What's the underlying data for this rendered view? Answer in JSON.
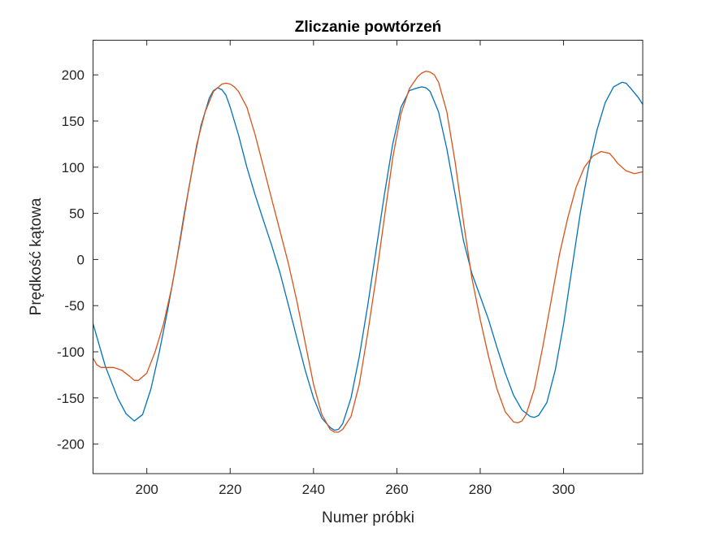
{
  "chart_data": {
    "type": "line",
    "title": "Zliczanie powtórzeń",
    "xlabel": "Numer próbki",
    "ylabel": "Prędkość kątowa",
    "xlim": [
      187,
      319
    ],
    "ylim": [
      -232,
      238
    ],
    "grid": false,
    "legend": "none",
    "x_ticks": [
      200,
      220,
      240,
      260,
      280,
      300
    ],
    "x_tick_labels": [
      "200",
      "220",
      "240",
      "260",
      "280",
      "300"
    ],
    "y_ticks": [
      200,
      150,
      100,
      50,
      0,
      -50,
      -100,
      -150,
      -200
    ],
    "y_tick_labels": [
      "200",
      "150",
      "100",
      "50",
      "0",
      "-50",
      "-100",
      "-150",
      "-200"
    ],
    "series": [
      {
        "color": "#0072BD",
        "x": [
          187,
          190,
          193,
          195,
          197,
          199,
          201,
          203,
          205,
          207,
          209,
          211,
          213,
          215,
          216,
          217,
          218,
          219,
          220,
          222,
          224,
          226,
          228,
          230,
          232,
          234,
          236,
          238,
          240,
          242,
          244,
          245,
          246,
          247,
          249,
          251,
          253,
          255,
          257,
          259,
          261,
          263,
          265,
          266,
          267,
          268,
          270,
          272,
          274,
          276,
          278,
          280,
          282,
          284,
          286,
          288,
          290,
          292,
          293,
          294,
          296,
          298,
          300,
          302,
          304,
          306,
          308,
          310,
          312,
          314,
          315,
          316,
          318,
          319
        ],
        "y": [
          -68,
          -115,
          -150,
          -167,
          -175,
          -168,
          -140,
          -100,
          -55,
          -5,
          50,
          100,
          145,
          175,
          183,
          186,
          184,
          178,
          165,
          135,
          100,
          70,
          42,
          15,
          -15,
          -50,
          -85,
          -120,
          -150,
          -172,
          -182,
          -185,
          -184,
          -178,
          -150,
          -105,
          -50,
          10,
          70,
          125,
          165,
          183,
          186,
          187,
          186,
          182,
          160,
          120,
          70,
          20,
          -15,
          -40,
          -65,
          -95,
          -123,
          -147,
          -163,
          -170,
          -171,
          -169,
          -155,
          -120,
          -70,
          -10,
          50,
          100,
          140,
          170,
          187,
          192,
          191,
          186,
          175,
          168
        ]
      },
      {
        "color": "#D95319",
        "x": [
          187,
          188,
          189,
          190,
          192,
          194,
          196,
          197,
          198,
          200,
          202,
          204,
          206,
          208,
          210,
          212,
          214,
          216,
          218,
          219,
          220,
          221,
          222,
          224,
          226,
          228,
          230,
          232,
          234,
          236,
          238,
          240,
          242,
          244,
          245,
          246,
          247,
          249,
          251,
          253,
          255,
          257,
          259,
          261,
          263,
          265,
          266,
          267,
          268,
          269,
          270,
          272,
          274,
          276,
          278,
          280,
          282,
          284,
          286,
          288,
          289,
          290,
          291,
          293,
          295,
          297,
          299,
          301,
          303,
          305,
          307,
          309,
          311,
          312,
          313,
          315,
          317,
          318,
          319
        ],
        "y": [
          -106,
          -114,
          -117,
          -117,
          -117,
          -120,
          -127,
          -131,
          -131,
          -123,
          -100,
          -70,
          -30,
          20,
          75,
          125,
          160,
          182,
          190,
          191,
          190,
          187,
          182,
          165,
          135,
          100,
          65,
          30,
          -5,
          -45,
          -90,
          -135,
          -168,
          -184,
          -187,
          -187,
          -184,
          -170,
          -135,
          -80,
          -20,
          45,
          110,
          158,
          185,
          198,
          202,
          204,
          203,
          200,
          192,
          160,
          105,
          40,
          -20,
          -65,
          -105,
          -140,
          -165,
          -176,
          -177,
          -175,
          -168,
          -140,
          -95,
          -45,
          5,
          45,
          78,
          100,
          112,
          117,
          115,
          110,
          104,
          96,
          93,
          94,
          95
        ]
      }
    ]
  }
}
